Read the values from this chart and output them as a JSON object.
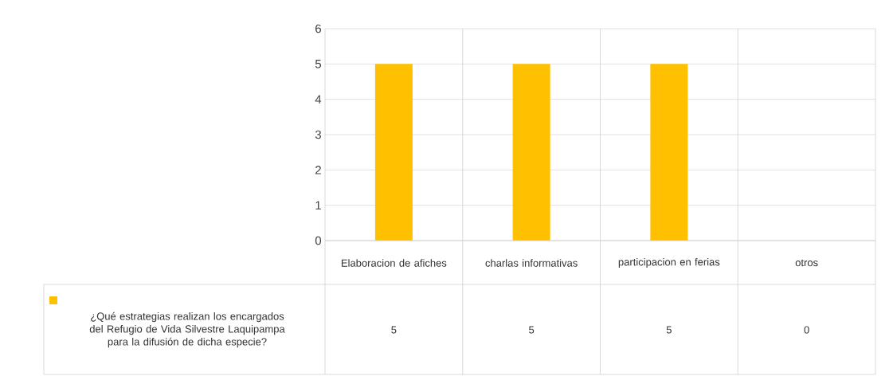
{
  "chart_data": {
    "type": "bar",
    "categories": [
      "Elaboracion de afiches",
      "charlas informativas",
      "participacion en ferias",
      "otros"
    ],
    "series": [
      {
        "name": "¿Qué estrategias realizan los encargados del Refugio de Vida Silvestre Laquipampa para la difusión de dicha especie?",
        "color": "#ffc000",
        "values": [
          5,
          5,
          5,
          0
        ]
      }
    ],
    "ylim": [
      0,
      6
    ],
    "yticks": [
      0,
      1,
      2,
      3,
      4,
      5,
      6
    ],
    "grid": "y",
    "data_labels": true,
    "legend": "bottom left"
  }
}
